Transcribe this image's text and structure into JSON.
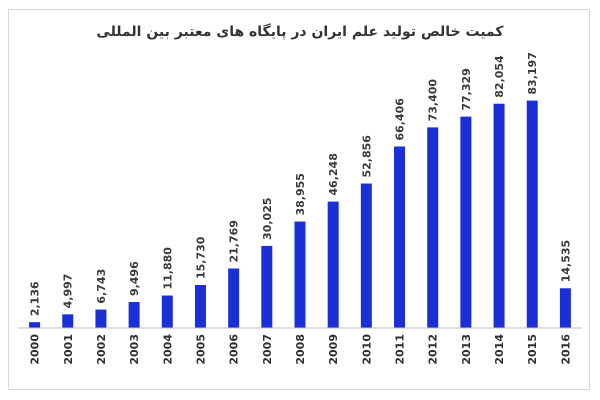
{
  "chart_data": {
    "type": "bar",
    "title": "کمیت خالص تولید علم ایران  در پایگاه های معتبر بین المللی",
    "categories": [
      "2000",
      "2001",
      "2002",
      "2003",
      "2004",
      "2005",
      "2006",
      "2007",
      "2008",
      "2009",
      "2010",
      "2011",
      "2012",
      "2013",
      "2014",
      "2015",
      "2016"
    ],
    "values": [
      2136,
      4997,
      6743,
      9496,
      11880,
      15730,
      21769,
      30025,
      38955,
      46248,
      52856,
      66406,
      73400,
      77329,
      82054,
      83197,
      14535
    ],
    "value_labels": [
      "2,136",
      "4,997",
      "6,743",
      "9,496",
      "11,880",
      "15,730",
      "21,769",
      "30,025",
      "38,955",
      "46,248",
      "52,856",
      "66,406",
      "73,400",
      "77,329",
      "82,054",
      "83,197",
      "14,535"
    ],
    "ylim": [
      0,
      90000
    ],
    "grid": false,
    "legend": "none",
    "xlabel": "",
    "ylabel": "",
    "bar_color": "#1a2fd6",
    "axis_color": "#bfbfbf"
  }
}
